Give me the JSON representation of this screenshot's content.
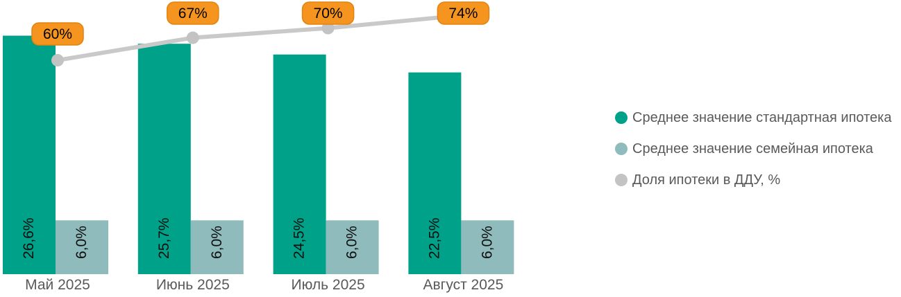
{
  "chart_data": {
    "type": "bar",
    "subtype": "clustered-bars-with-line-overlay",
    "title": "",
    "categories": [
      "Май 2025",
      "Июнь 2025",
      "Июль 2025",
      "Август 2025"
    ],
    "series": [
      {
        "name": "Среднее значение стандартная ипотека",
        "type": "bar",
        "color": "#00A189",
        "values": [
          26.6,
          25.7,
          24.5,
          22.5
        ],
        "labels": [
          "26,6%",
          "25,7%",
          "24,5%",
          "22,5%"
        ]
      },
      {
        "name": "Среднее значение семейная ипотека",
        "type": "bar",
        "color": "#8FBBBC",
        "values": [
          6.0,
          6.0,
          6.0,
          6.0
        ],
        "labels": [
          "6,0%",
          "6,0%",
          "6,0%",
          "6,0%"
        ]
      },
      {
        "name": "Доля ипотеки в ДДУ, %",
        "type": "line",
        "color": "#C9C9C9",
        "marker_color": "#C3C3C3",
        "values": [
          60,
          67,
          70,
          74
        ],
        "labels": [
          "60%",
          "67%",
          "70%",
          "74%"
        ]
      }
    ],
    "callout": {
      "fill": "#F5941E",
      "border": "#E3830F",
      "text_color": "#000000"
    },
    "value_label_color": "#0D0D0D",
    "category_label_color": "#595959",
    "legend_position": "right",
    "legend_text_color": "#595959",
    "grid": false,
    "axes_visible": false,
    "bar_axis_range": [
      0,
      30
    ],
    "line_axis_range": [
      0,
      100
    ]
  }
}
